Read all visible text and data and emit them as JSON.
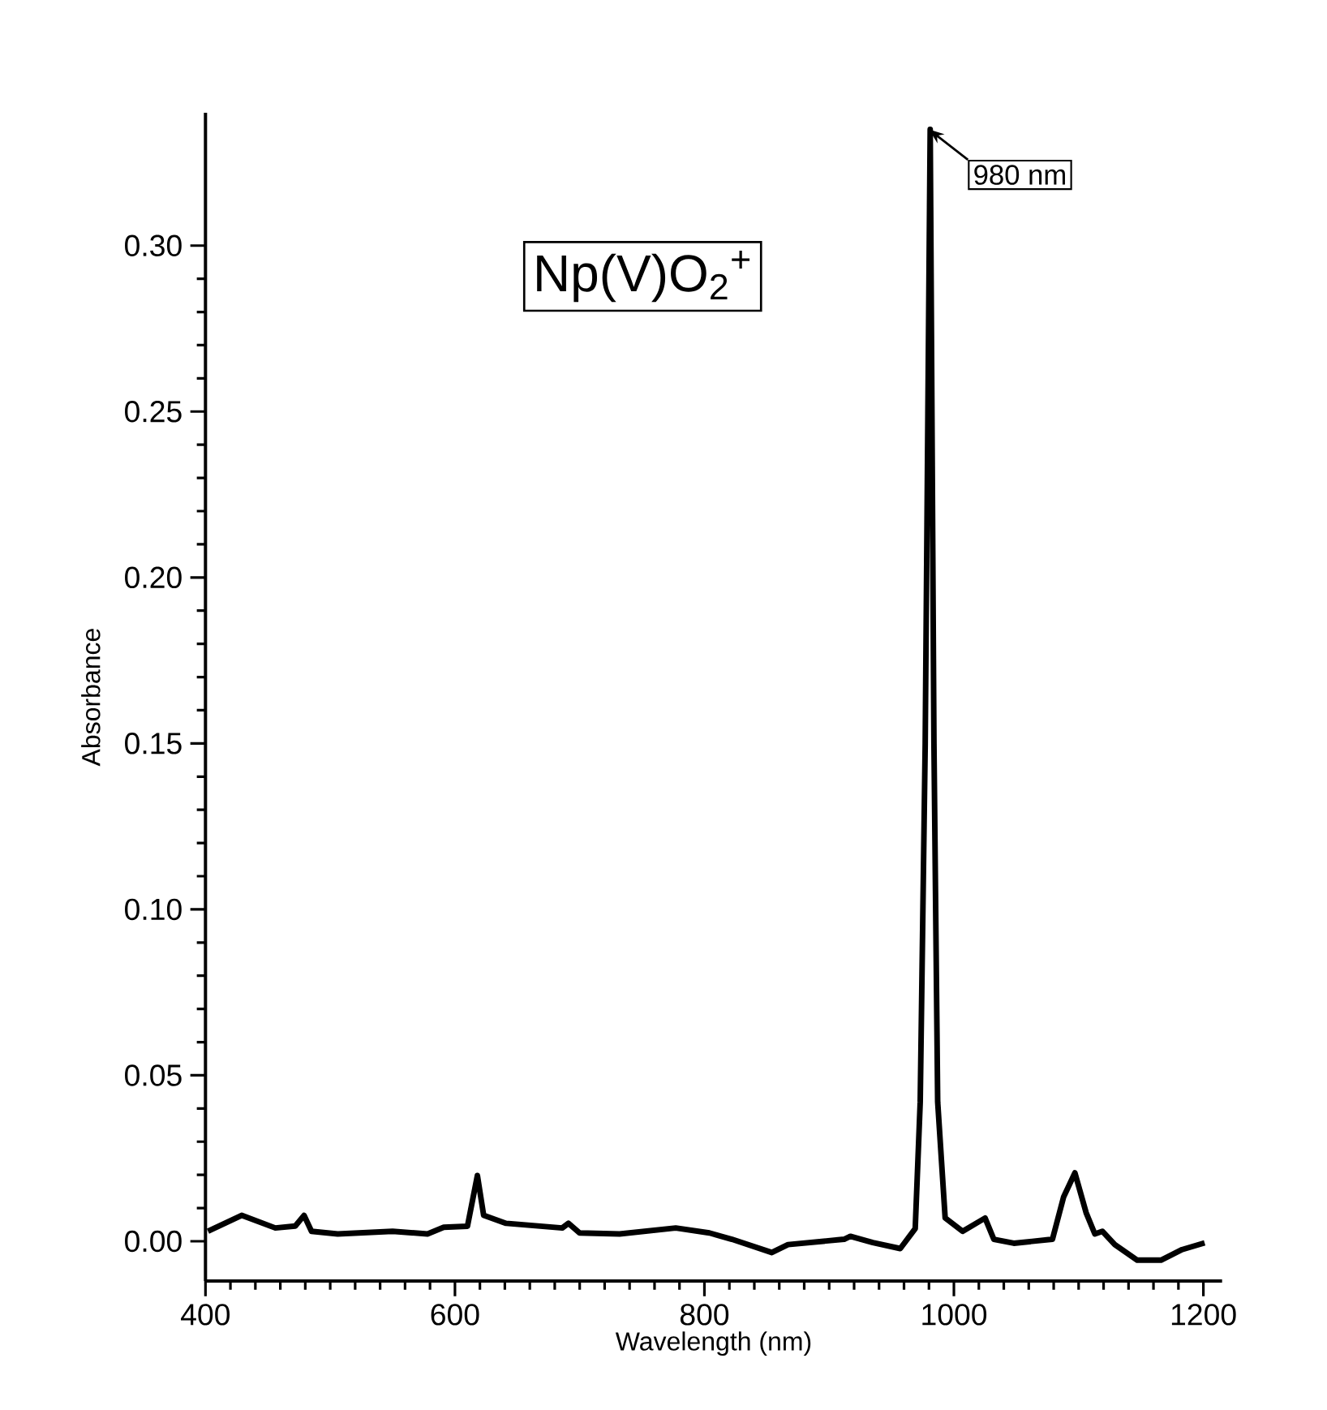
{
  "chart_data": {
    "type": "line",
    "xlabel": "Wavelength (nm)",
    "ylabel": "Absorbance",
    "x": [
      402,
      429,
      456,
      472,
      479,
      485,
      506,
      550,
      578,
      591,
      610,
      618,
      623,
      641,
      686,
      691,
      700,
      732,
      777,
      804,
      822,
      854,
      867,
      912,
      917,
      935,
      957,
      969,
      973,
      977,
      981,
      984,
      987,
      993,
      1007,
      1025,
      1032,
      1048,
      1079,
      1088,
      1097,
      1106,
      1113,
      1119,
      1129,
      1147,
      1166,
      1183,
      1201
    ],
    "values": [
      0.003,
      0.0078,
      0.004,
      0.0046,
      0.0078,
      0.003,
      0.0022,
      0.003,
      0.0022,
      0.0042,
      0.0045,
      0.0198,
      0.0078,
      0.0054,
      0.004,
      0.0054,
      0.0025,
      0.0022,
      0.004,
      0.0025,
      0.0006,
      -0.0034,
      -0.001,
      0.0006,
      0.0015,
      -0.0004,
      -0.0022,
      0.0038,
      0.042,
      0.15,
      0.335,
      0.15,
      0.042,
      0.007,
      0.003,
      0.007,
      0.0006,
      -0.0006,
      0.0006,
      0.0134,
      0.0206,
      0.0086,
      0.0022,
      0.003,
      -0.001,
      -0.0057,
      -0.0057,
      -0.0025,
      -0.0005
    ],
    "color": "#000000",
    "xlim": [
      400,
      1215
    ],
    "ylim": [
      -0.012,
      0.34
    ],
    "xticks": [
      400,
      600,
      800,
      1000,
      1200
    ],
    "yticks": [
      {
        "value": 0,
        "label": "0.00"
      },
      {
        "value": 0.05,
        "label": "0.05"
      },
      {
        "value": 0.1,
        "label": "0.10"
      },
      {
        "value": 0.15,
        "label": "0.15"
      },
      {
        "value": 0.2,
        "label": "0.20"
      },
      {
        "value": 0.25,
        "label": "0.25"
      },
      {
        "value": 0.3,
        "label": "0.30"
      }
    ],
    "annotations": [
      {
        "text": "980 nm",
        "x": 980,
        "y": 0.335
      },
      "Np(V)O$_{2}$$^{+}$"
    ],
    "grid": false,
    "marker": "none",
    "line_style": "solid"
  }
}
